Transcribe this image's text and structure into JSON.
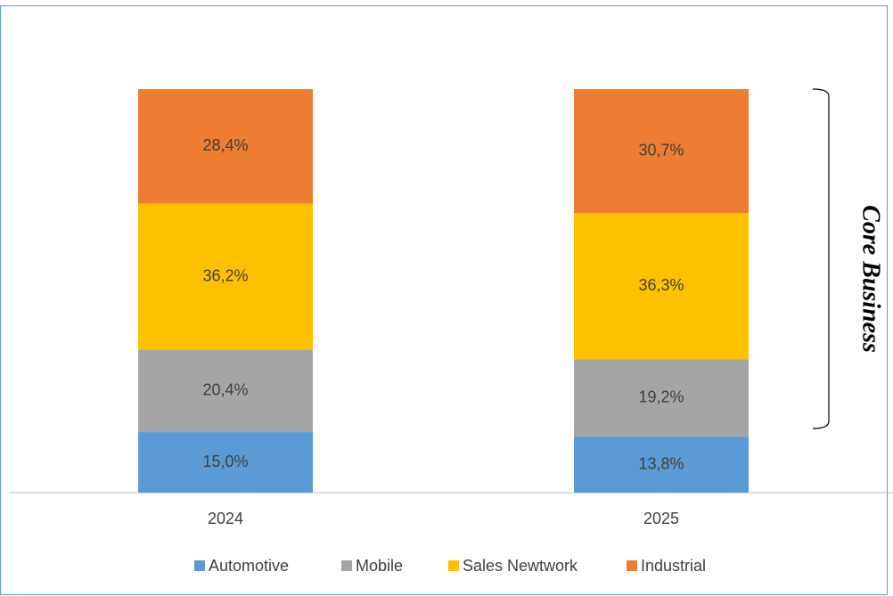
{
  "chart_data": {
    "type": "stacked_bar",
    "categories": [
      "2024",
      "2025"
    ],
    "series": [
      {
        "name": "Automotive",
        "color": "#5b9bd5",
        "values": [
          15.0,
          13.8
        ],
        "value_labels": [
          "15,0%",
          "13,8%"
        ]
      },
      {
        "name": "Mobile",
        "color": "#a5a5a5",
        "values": [
          20.4,
          19.2
        ],
        "value_labels": [
          "20,4%",
          "19,2%"
        ]
      },
      {
        "name": "Sales Newtwork",
        "color": "#ffc000",
        "values": [
          36.2,
          36.3
        ],
        "value_labels": [
          "36,2%",
          "36,3%"
        ]
      },
      {
        "name": "Industrial",
        "color": "#ed7d31",
        "values": [
          28.4,
          30.7
        ],
        "value_labels": [
          "28,4%",
          "30,7%"
        ]
      }
    ],
    "ylim": [
      0,
      100
    ],
    "annotation": "Core Business",
    "legend": "bottom"
  }
}
